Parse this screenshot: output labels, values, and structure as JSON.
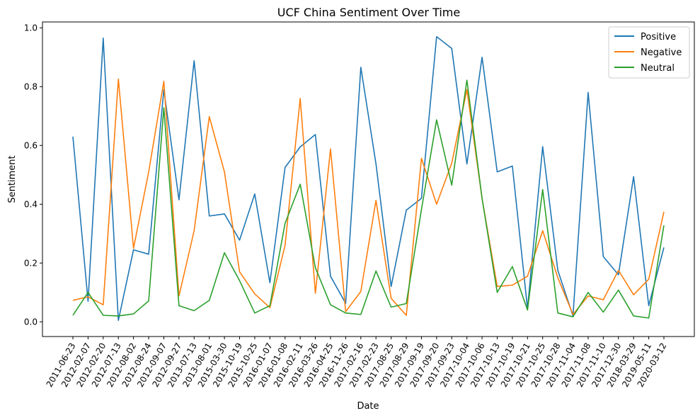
{
  "chart_data": {
    "type": "line",
    "title": "UCF China Sentiment Over Time",
    "xlabel": "Date",
    "ylabel": "Sentiment",
    "ylim": [
      -0.05,
      1.02
    ],
    "yticks": [
      0.0,
      0.2,
      0.4,
      0.6,
      0.8,
      1.0
    ],
    "ytick_labels": [
      "0.0",
      "0.2",
      "0.4",
      "0.6",
      "0.8",
      "1.0"
    ],
    "grid": false,
    "legend": "top-right",
    "categories": [
      "2011-06-23",
      "2012-02-07",
      "2012-02-20",
      "2012-07-13",
      "2012-08-02",
      "2012-08-24",
      "2012-09-07",
      "2012-09-27",
      "2013-07-13",
      "2013-08-01",
      "2015-03-30",
      "2015-10-19",
      "2015-10-25",
      "2016-01-07",
      "2016-01-08",
      "2016-02-11",
      "2016-03-26",
      "2016-04-25",
      "2016-11-26",
      "2017-02-16",
      "2017-02-23",
      "2017-08-25",
      "2017-08-29",
      "2017-09-19",
      "2017-09-20",
      "2017-09-23",
      "2017-10-04",
      "2017-10-06",
      "2017-10-13",
      "2017-10-19",
      "2017-10-21",
      "2017-10-25",
      "2017-10-28",
      "2017-11-04",
      "2017-11-08",
      "2017-11-10",
      "2017-12-30",
      "2018-03-29",
      "2019-05-11",
      "2020-03-12"
    ],
    "series": [
      {
        "name": "Positive",
        "color": "#1f77b4",
        "values": [
          0.63,
          0.07,
          0.965,
          0.005,
          0.245,
          0.23,
          0.79,
          0.415,
          0.888,
          0.36,
          0.367,
          0.278,
          0.435,
          0.133,
          0.525,
          0.595,
          0.637,
          0.155,
          0.063,
          0.866,
          0.537,
          0.12,
          0.38,
          0.42,
          0.97,
          0.93,
          0.537,
          0.9,
          0.51,
          0.53,
          0.045,
          0.596,
          0.175,
          0.02,
          0.78,
          0.222,
          0.16,
          0.494,
          0.055,
          0.253
        ]
      },
      {
        "name": "Negative",
        "color": "#ff7f0e",
        "values": [
          0.073,
          0.085,
          0.058,
          0.826,
          0.25,
          0.51,
          0.818,
          0.088,
          0.31,
          0.698,
          0.51,
          0.17,
          0.095,
          0.048,
          0.26,
          0.76,
          0.097,
          0.588,
          0.035,
          0.103,
          0.413,
          0.08,
          0.022,
          0.556,
          0.4,
          0.54,
          0.79,
          0.42,
          0.12,
          0.125,
          0.155,
          0.31,
          0.15,
          0.025,
          0.088,
          0.075,
          0.175,
          0.092,
          0.145,
          0.374
        ]
      },
      {
        "name": "Neutral",
        "color": "#2ca02c",
        "values": [
          0.022,
          0.1,
          0.022,
          0.02,
          0.027,
          0.071,
          0.728,
          0.055,
          0.038,
          0.073,
          0.235,
          0.14,
          0.03,
          0.055,
          0.335,
          0.468,
          0.184,
          0.058,
          0.03,
          0.025,
          0.173,
          0.05,
          0.062,
          0.382,
          0.687,
          0.465,
          0.822,
          0.42,
          0.1,
          0.188,
          0.04,
          0.45,
          0.03,
          0.017,
          0.1,
          0.033,
          0.108,
          0.02,
          0.013,
          0.328
        ]
      }
    ]
  }
}
